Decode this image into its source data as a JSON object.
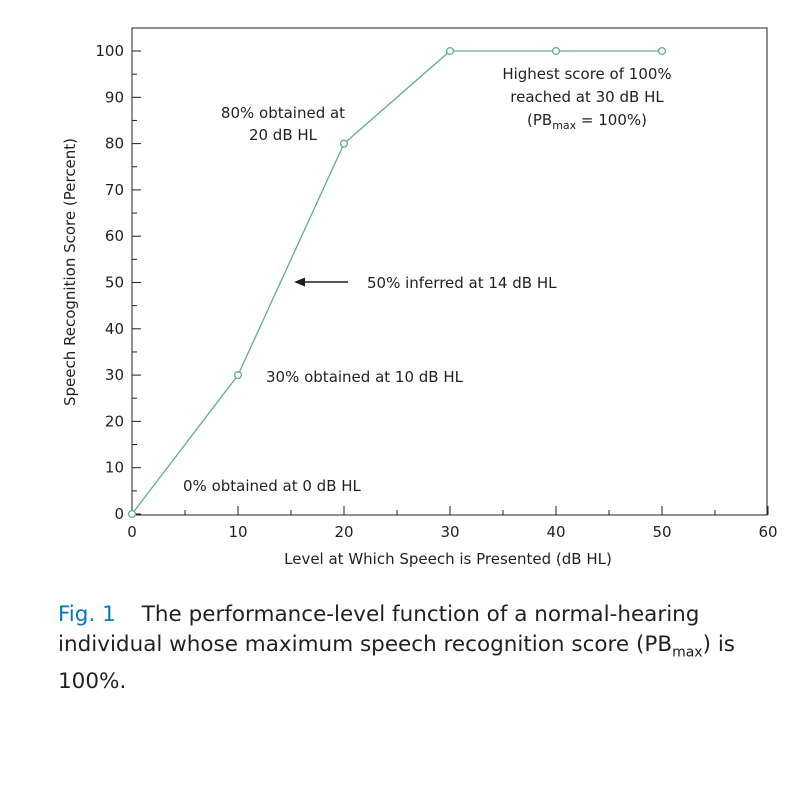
{
  "chart_data": {
    "type": "line",
    "xlabel": "Level at Which Speech is Presented (dB HL)",
    "ylabel": "Speech Recognition Score (Percent)",
    "xlim": [
      0,
      60
    ],
    "ylim": [
      0,
      100
    ],
    "x_ticks": [
      0,
      10,
      20,
      30,
      40,
      50,
      60
    ],
    "y_ticks": [
      0,
      10,
      20,
      30,
      40,
      50,
      60,
      70,
      80,
      90,
      100
    ],
    "series": [
      {
        "name": "Performance-level function",
        "x": [
          0,
          10,
          20,
          30,
          40,
          50
        ],
        "y": [
          0,
          30,
          80,
          100,
          100,
          100
        ],
        "color": "#5fae86"
      }
    ],
    "annotations": {
      "zero": "0% obtained at 0 dB HL",
      "thirty": "30% obtained at 10 dB HL",
      "fifty": "50% inferred at 14 dB HL",
      "eighty_line1": "80% obtained at",
      "eighty_line2": "20 dB HL",
      "highest_line1": "Highest score of 100%",
      "highest_line2": "reached at 30 dB HL",
      "highest_line3_pre": "(PB",
      "highest_line3_sub": "max",
      "highest_line3_post": " = 100%)"
    }
  },
  "caption": {
    "label": "Fig. 1",
    "text_before": "The performance-level function of a normal-hearing individual whose maximum speech recognition score (PB",
    "text_sub": "max",
    "text_after": ") is 100%."
  }
}
